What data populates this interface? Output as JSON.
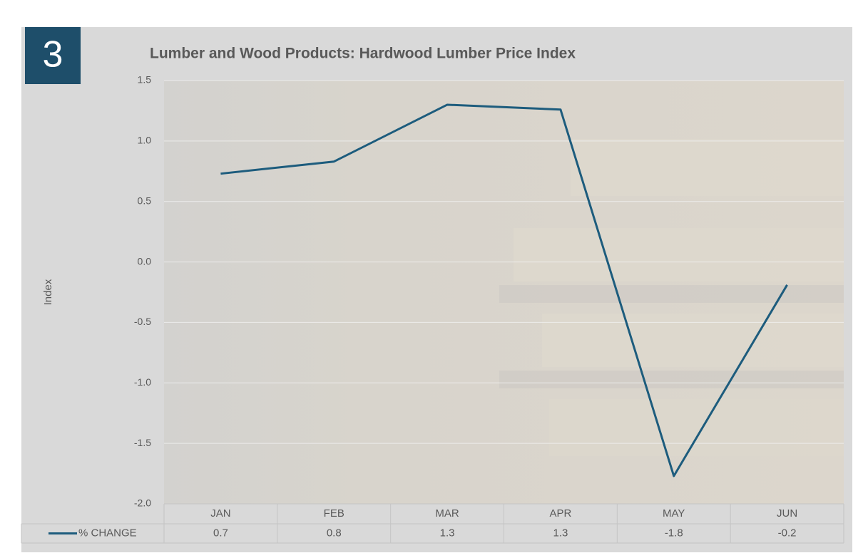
{
  "badge": "3",
  "chart_data": {
    "type": "line",
    "title": "Lumber and Wood Products: Hardwood Lumber Price Index",
    "y_label": "Index",
    "categories": [
      "JAN",
      "FEB",
      "MAR",
      "APR",
      "MAY",
      "JUN"
    ],
    "series": [
      {
        "name": "% CHANGE",
        "color": "#1d5c7d",
        "values": [
          0.73,
          0.83,
          1.3,
          1.26,
          -1.77,
          -0.19
        ],
        "value_labels": [
          "0.7",
          "0.8",
          "1.3",
          "1.3",
          "-1.8",
          "-0.2"
        ]
      }
    ],
    "ylim": [
      -2,
      1.5
    ],
    "yticks": [
      {
        "value": -2,
        "label": "-2.0"
      },
      -1.5,
      {
        "value": -1,
        "label": "-1.0"
      },
      -0.5,
      {
        "value": 0,
        "label": "0.0"
      },
      0.5,
      {
        "value": 1,
        "label": "1.0"
      },
      1.5
    ],
    "grid": true,
    "data_table": true
  }
}
